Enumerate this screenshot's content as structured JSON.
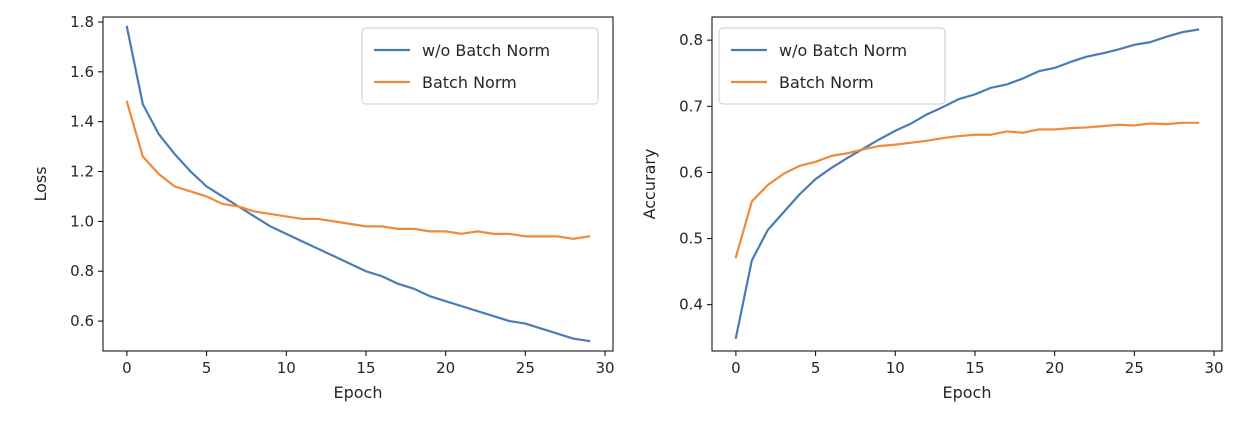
{
  "chart_data": [
    {
      "type": "line",
      "title": "",
      "xlabel": "Epoch",
      "ylabel": "Loss",
      "xlim": [
        -1.5,
        30.5
      ],
      "ylim": [
        0.48,
        1.82
      ],
      "xticks": [
        0,
        5,
        10,
        15,
        20,
        25,
        30
      ],
      "xtick_labels": [
        "0",
        "5",
        "10",
        "15",
        "20",
        "25",
        "30"
      ],
      "yticks": [
        0.6,
        0.8,
        1.0,
        1.2,
        1.4,
        1.6,
        1.8
      ],
      "ytick_labels": [
        "0.6",
        "0.8",
        "1.0",
        "1.2",
        "1.4",
        "1.6",
        "1.8"
      ],
      "grid": false,
      "legend_position": "upper right",
      "x": [
        0,
        1,
        2,
        3,
        4,
        5,
        6,
        7,
        8,
        9,
        10,
        11,
        12,
        13,
        14,
        15,
        16,
        17,
        18,
        19,
        20,
        21,
        22,
        23,
        24,
        25,
        26,
        27,
        28,
        29
      ],
      "series": [
        {
          "name": "w/o Batch Norm",
          "color": "#4c7bb4",
          "values": [
            1.78,
            1.47,
            1.35,
            1.27,
            1.2,
            1.14,
            1.1,
            1.06,
            1.02,
            0.98,
            0.95,
            0.92,
            0.89,
            0.86,
            0.83,
            0.8,
            0.78,
            0.75,
            0.73,
            0.7,
            0.68,
            0.66,
            0.64,
            0.62,
            0.6,
            0.59,
            0.57,
            0.55,
            0.53,
            0.52
          ]
        },
        {
          "name": "Batch Norm",
          "color": "#ef8a3a",
          "values": [
            1.48,
            1.26,
            1.19,
            1.14,
            1.12,
            1.1,
            1.07,
            1.06,
            1.04,
            1.03,
            1.02,
            1.01,
            1.01,
            1.0,
            0.99,
            0.98,
            0.98,
            0.97,
            0.97,
            0.96,
            0.96,
            0.95,
            0.96,
            0.95,
            0.95,
            0.94,
            0.94,
            0.94,
            0.93,
            0.94
          ]
        }
      ]
    },
    {
      "type": "line",
      "title": "",
      "xlabel": "Epoch",
      "ylabel": "Accurary",
      "xlim": [
        -1.5,
        30.5
      ],
      "ylim": [
        0.33,
        0.835
      ],
      "xticks": [
        0,
        5,
        10,
        15,
        20,
        25,
        30
      ],
      "xtick_labels": [
        "0",
        "5",
        "10",
        "15",
        "20",
        "25",
        "30"
      ],
      "yticks": [
        0.4,
        0.5,
        0.6,
        0.7,
        0.8
      ],
      "ytick_labels": [
        "0.4",
        "0.5",
        "0.6",
        "0.7",
        "0.8"
      ],
      "grid": false,
      "legend_position": "upper left",
      "x": [
        0,
        1,
        2,
        3,
        4,
        5,
        6,
        7,
        8,
        9,
        10,
        11,
        12,
        13,
        14,
        15,
        16,
        17,
        18,
        19,
        20,
        21,
        22,
        23,
        24,
        25,
        26,
        27,
        28,
        29
      ],
      "series": [
        {
          "name": "w/o Batch Norm",
          "color": "#4c7bb4",
          "values": [
            0.35,
            0.467,
            0.513,
            0.54,
            0.567,
            0.59,
            0.607,
            0.622,
            0.636,
            0.65,
            0.663,
            0.674,
            0.688,
            0.699,
            0.711,
            0.718,
            0.728,
            0.733,
            0.742,
            0.753,
            0.758,
            0.767,
            0.775,
            0.78,
            0.786,
            0.793,
            0.797,
            0.805,
            0.812,
            0.816
          ]
        },
        {
          "name": "Batch Norm",
          "color": "#ef8a3a",
          "values": [
            0.472,
            0.556,
            0.581,
            0.598,
            0.61,
            0.616,
            0.625,
            0.629,
            0.635,
            0.64,
            0.642,
            0.645,
            0.648,
            0.652,
            0.655,
            0.657,
            0.657,
            0.662,
            0.66,
            0.665,
            0.665,
            0.667,
            0.668,
            0.67,
            0.672,
            0.671,
            0.674,
            0.673,
            0.675,
            0.675
          ]
        }
      ]
    }
  ]
}
